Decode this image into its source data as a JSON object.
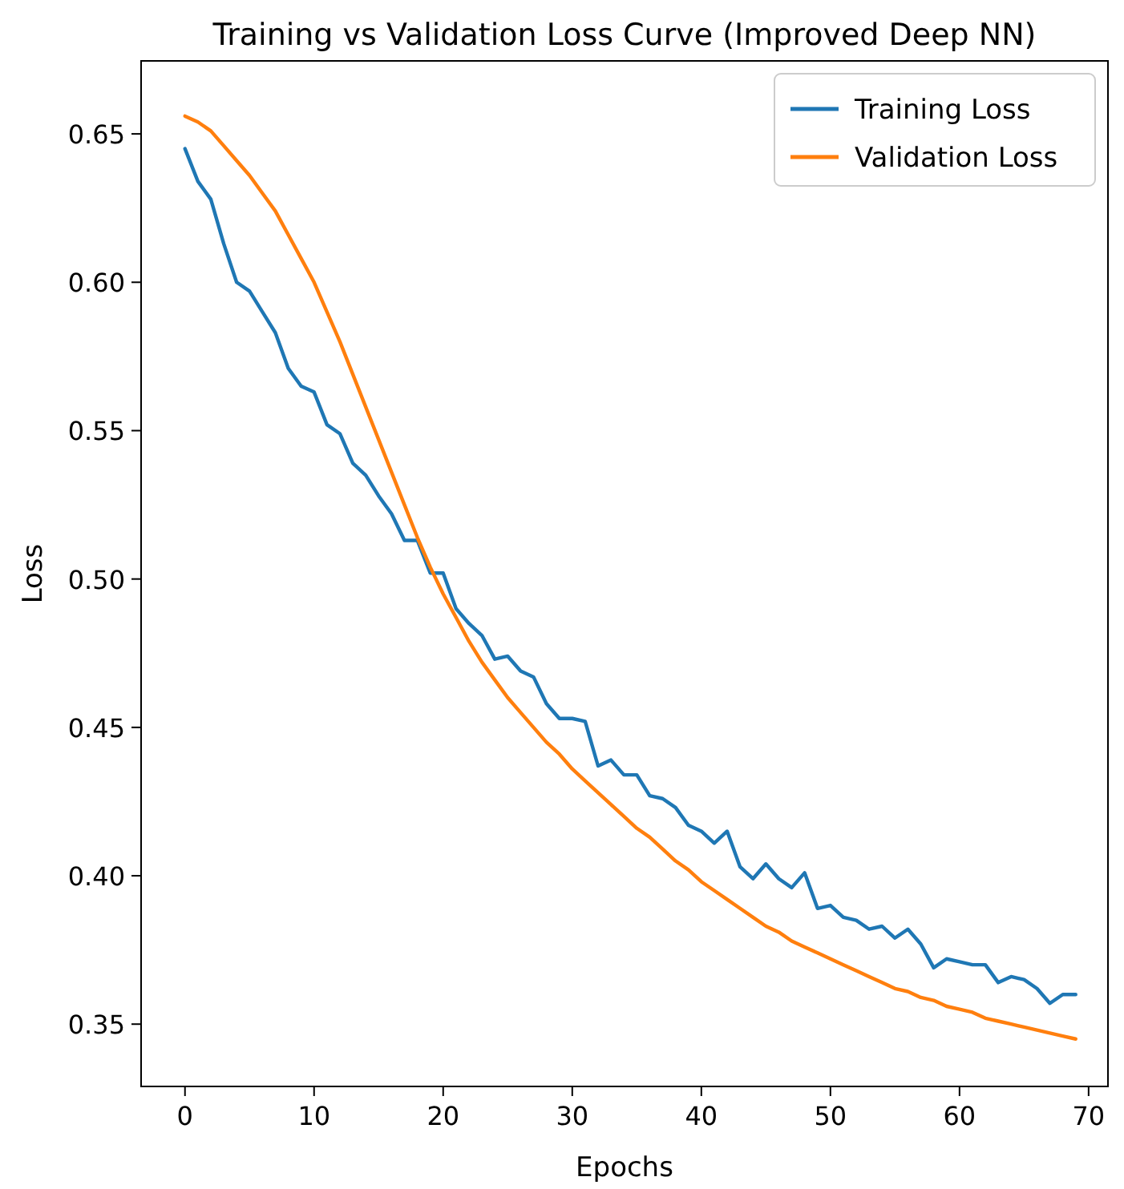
{
  "chart_data": {
    "type": "line",
    "title": "Training vs Validation Loss Curve (Improved Deep NN)",
    "xlabel": "Epochs",
    "ylabel": "Loss",
    "x": [
      0,
      1,
      2,
      3,
      4,
      5,
      6,
      7,
      8,
      9,
      10,
      11,
      12,
      13,
      14,
      15,
      16,
      17,
      18,
      19,
      20,
      21,
      22,
      23,
      24,
      25,
      26,
      27,
      28,
      29,
      30,
      31,
      32,
      33,
      34,
      35,
      36,
      37,
      38,
      39,
      40,
      41,
      42,
      43,
      44,
      45,
      46,
      47,
      48,
      49,
      50,
      51,
      52,
      53,
      54,
      55,
      56,
      57,
      58,
      59,
      60,
      61,
      62,
      63,
      64,
      65,
      66,
      67,
      68,
      69
    ],
    "series": [
      {
        "name": "Training Loss",
        "color": "#1f77b4",
        "values": [
          0.645,
          0.634,
          0.628,
          0.613,
          0.6,
          0.597,
          0.59,
          0.583,
          0.571,
          0.565,
          0.563,
          0.552,
          0.549,
          0.539,
          0.535,
          0.528,
          0.522,
          0.513,
          0.513,
          0.502,
          0.502,
          0.49,
          0.485,
          0.481,
          0.473,
          0.474,
          0.469,
          0.467,
          0.458,
          0.453,
          0.453,
          0.452,
          0.437,
          0.439,
          0.434,
          0.434,
          0.427,
          0.426,
          0.423,
          0.417,
          0.415,
          0.411,
          0.415,
          0.403,
          0.399,
          0.404,
          0.399,
          0.396,
          0.401,
          0.389,
          0.39,
          0.386,
          0.385,
          0.382,
          0.383,
          0.379,
          0.382,
          0.377,
          0.369,
          0.372,
          0.371,
          0.37,
          0.37,
          0.364,
          0.366,
          0.365,
          0.362,
          0.357,
          0.36,
          0.36
        ]
      },
      {
        "name": "Validation Loss",
        "color": "#ff7f0e",
        "values": [
          0.656,
          0.654,
          0.651,
          0.646,
          0.641,
          0.636,
          0.63,
          0.624,
          0.616,
          0.608,
          0.6,
          0.59,
          0.58,
          0.569,
          0.558,
          0.547,
          0.536,
          0.525,
          0.514,
          0.504,
          0.495,
          0.487,
          0.479,
          0.472,
          0.466,
          0.46,
          0.455,
          0.45,
          0.445,
          0.441,
          0.436,
          0.432,
          0.428,
          0.424,
          0.42,
          0.416,
          0.413,
          0.409,
          0.405,
          0.402,
          0.398,
          0.395,
          0.392,
          0.389,
          0.386,
          0.383,
          0.381,
          0.378,
          0.376,
          0.374,
          0.372,
          0.37,
          0.368,
          0.366,
          0.364,
          0.362,
          0.361,
          0.359,
          0.358,
          0.356,
          0.355,
          0.354,
          0.352,
          0.351,
          0.35,
          0.349,
          0.348,
          0.347,
          0.346,
          0.345
        ]
      }
    ],
    "xlim": [
      -3.4,
      71.5
    ],
    "xticks": [
      0,
      10,
      20,
      30,
      40,
      50,
      60,
      70
    ],
    "ylim": [
      0.329,
      0.6746
    ],
    "yticks": [
      {
        "value": 0.35,
        "label": "0.35"
      },
      {
        "value": 0.4,
        "label": "0.40"
      },
      {
        "value": 0.45,
        "label": "0.45"
      },
      {
        "value": 0.5,
        "label": "0.50"
      },
      {
        "value": 0.55,
        "label": "0.55"
      },
      {
        "value": 0.6,
        "label": "0.60"
      },
      {
        "value": 0.65,
        "label": "0.65"
      }
    ],
    "legend": "top right",
    "grid": false,
    "line_style": "solid",
    "marker": "none"
  }
}
